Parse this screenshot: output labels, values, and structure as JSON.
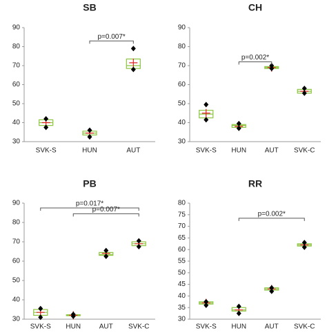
{
  "chart_data": [
    {
      "type": "box",
      "title": "SB",
      "categories": [
        "SVK-S",
        "HUN",
        "AUT"
      ],
      "min": [
        37.5,
        32.5,
        68
      ],
      "q1": [
        38.5,
        33.5,
        68.5
      ],
      "median": [
        40,
        34.5,
        70
      ],
      "q3": [
        41.5,
        35.5,
        73.5
      ],
      "max": [
        42,
        36,
        79
      ],
      "mean": [
        40,
        34.5,
        71.5
      ],
      "ylim": [
        30,
        90
      ],
      "yticks": [
        30,
        40,
        50,
        60,
        70,
        80,
        90
      ],
      "annotations": [
        {
          "label": "p=0.007*",
          "start": "HUN",
          "end": "AUT",
          "y": 83
        }
      ]
    },
    {
      "type": "box",
      "title": "CH",
      "categories": [
        "SVK-S",
        "HUN",
        "AUT",
        "SVK-C"
      ],
      "min": [
        41.5,
        37,
        68.5,
        55.5
      ],
      "q1": [
        42.5,
        37.5,
        68.5,
        55.5
      ],
      "median": [
        44.5,
        38.5,
        69,
        56.5
      ],
      "q3": [
        46.5,
        39,
        69.5,
        57.5
      ],
      "max": [
        49.5,
        39.5,
        70,
        58
      ],
      "mean": [
        45,
        38,
        69,
        56.5
      ],
      "ylim": [
        30,
        90
      ],
      "yticks": [
        30,
        40,
        50,
        60,
        70,
        80,
        90
      ],
      "annotations": [
        {
          "label": "p=0.002*",
          "start": "HUN",
          "end": "AUT",
          "y": 72
        }
      ]
    },
    {
      "type": "box",
      "title": "PB",
      "categories": [
        "SVK-S",
        "HUN",
        "AUT",
        "SVK-C"
      ],
      "min": [
        31,
        31.5,
        62.5,
        67.5
      ],
      "q1": [
        32,
        31.8,
        63,
        68
      ],
      "median": [
        33.5,
        32,
        63.5,
        69
      ],
      "q3": [
        35,
        32.3,
        64.5,
        70
      ],
      "max": [
        35.5,
        32.5,
        65.5,
        70.5
      ],
      "mean": [
        33.5,
        32,
        64,
        69
      ],
      "ylim": [
        30,
        90
      ],
      "yticks": [
        30,
        40,
        50,
        60,
        70,
        80,
        90
      ],
      "annotations": [
        {
          "label": "p=0.017*",
          "start": "SVK-S",
          "end": "SVK-C",
          "y": 87.5
        },
        {
          "label": "p=0.007*",
          "start": "HUN",
          "end": "SVK-C",
          "y": 84.5
        }
      ]
    },
    {
      "type": "box",
      "title": "RR",
      "categories": [
        "SVK-S",
        "HUN",
        "AUT",
        "SVK-C"
      ],
      "min": [
        36,
        32.5,
        42,
        61
      ],
      "q1": [
        36.5,
        33.5,
        42.5,
        61.5
      ],
      "median": [
        37,
        34,
        43,
        62
      ],
      "q3": [
        37.5,
        35,
        43.5,
        62.5
      ],
      "max": [
        37.5,
        35.5,
        43.5,
        63
      ],
      "mean": [
        37,
        34,
        43,
        62
      ],
      "ylim": [
        30,
        80
      ],
      "yticks": [
        30,
        35,
        40,
        45,
        50,
        55,
        60,
        65,
        70,
        75,
        80
      ],
      "annotations": [
        {
          "label": "p=0.002*",
          "start": "HUN",
          "end": "SVK-C",
          "y": 73.5
        }
      ]
    }
  ]
}
